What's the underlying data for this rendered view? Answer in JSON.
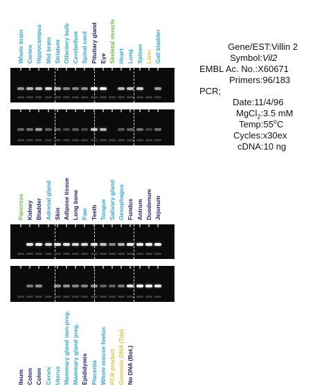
{
  "panel_top": {
    "labels": [
      {
        "text": "Whole brain",
        "color": "#2aa8e0"
      },
      {
        "text": "Cortex",
        "color": "#2aa8e0"
      },
      {
        "text": "Hippocampus",
        "color": "#2aa8e0"
      },
      {
        "text": "Mid brain",
        "color": "#2aa8e0"
      },
      {
        "text": "Striatum",
        "color": "#2aa8e0"
      },
      {
        "text": "Olfactory bulb",
        "color": "#2aa8e0"
      },
      {
        "text": "Cerebellum",
        "color": "#2aa8e0"
      },
      {
        "text": "Spinal cord",
        "color": "#2aa8e0"
      },
      {
        "text": "Pituitary gland",
        "color": "#1c1c7c"
      },
      {
        "text": "Eye",
        "color": "#1c1c7c"
      },
      {
        "text": "Skeletal muscle",
        "color": "#6cc040"
      },
      {
        "text": "Heart",
        "color": "#2aa8e0"
      },
      {
        "text": "Lung",
        "color": "#2aa8e0"
      },
      {
        "text": "Spleen",
        "color": "#2aa8e0"
      },
      {
        "text": "Liver",
        "color": "#f0c030"
      },
      {
        "text": "Gall bladder",
        "color": "#2aa8e0"
      }
    ],
    "gel1_bands": [
      0.55,
      0.7,
      0.75,
      0.85,
      0.7,
      0.5,
      0.5,
      0.55,
      1.0,
      0.95,
      0,
      0.7,
      0.75,
      0.8,
      0,
      0.6
    ],
    "gel2_bands": [
      0.35,
      0.4,
      0.6,
      0.35,
      0.3,
      0.25,
      0.3,
      0.25,
      0.75,
      0.7,
      0,
      0.3,
      0.35,
      0.4,
      0.2,
      0.4
    ]
  },
  "panel_bottom": {
    "labels": [
      {
        "text": "Pancreas",
        "color": "#6cc040"
      },
      {
        "text": "Kidney",
        "color": "#1c1c7c"
      },
      {
        "text": "Bladder",
        "color": "#1c1c7c"
      },
      {
        "text": "Adrenal gland",
        "color": "#2aa8e0"
      },
      {
        "text": "Skin",
        "color": "#1c1c7c"
      },
      {
        "text": "Adipose tissue",
        "color": "#1c1c7c"
      },
      {
        "text": "Long bone",
        "color": "#1c1c7c"
      },
      {
        "text": "Paw",
        "color": "#2aa8e0"
      },
      {
        "text": "Teeth",
        "color": "#1c1c7c"
      },
      {
        "text": "Tongue",
        "color": "#2aa8e0"
      },
      {
        "text": "Salivary gland",
        "color": "#2aa8e0"
      },
      {
        "text": "Oesophagus",
        "color": "#2aa8e0"
      },
      {
        "text": "Fundus",
        "color": "#1c1c7c"
      },
      {
        "text": "Antrum",
        "color": "#1c1c7c"
      },
      {
        "text": "Duodenum",
        "color": "#1c1c7c"
      },
      {
        "text": "Jejunum",
        "color": "#1c1c7c"
      }
    ],
    "gel1_bands": [
      0,
      0.9,
      0.95,
      0.85,
      0.9,
      0.9,
      0.85,
      0.85,
      0.9,
      0.75,
      0.5,
      0.7,
      0.95,
      0.95,
      1.0,
      0.95
    ],
    "gel2_bands": [
      0,
      0.45,
      0.55,
      0,
      0.55,
      0.55,
      0.5,
      0.5,
      0.55,
      0.35,
      0.35,
      0.45,
      0.9,
      1.0,
      1.0,
      0.9
    ]
  },
  "panel_third": {
    "labels": [
      {
        "text": "Ileum",
        "color": "#1c1c7c"
      },
      {
        "text": "Colon",
        "color": "#1c1c7c"
      },
      {
        "text": "Colon",
        "color": "#1c1c7c"
      },
      {
        "text": "Cervix",
        "color": "#2aa8e0"
      },
      {
        "text": "Uterus",
        "color": "#2aa8e0"
      },
      {
        "text": "Mammary gland non-preg.",
        "color": "#2aa8e0"
      },
      {
        "text": "Mammary gland preg.",
        "color": "#2aa8e0"
      },
      {
        "text": "Epididymis",
        "color": "#1c1c7c"
      },
      {
        "text": "Placenta",
        "color": "#2aa8e0"
      },
      {
        "text": "Whole mouse foetus",
        "color": "#2aa8e0"
      },
      {
        "text": "PCR product",
        "color": "#f0c030"
      },
      {
        "text": "Genomic DNA (Top)",
        "color": "#f0c030"
      },
      {
        "text": "No DNA (Bot.)",
        "color": "#1c1c7c"
      }
    ]
  },
  "info": {
    "gene_label": "Gene/EST:",
    "gene_value": "Villin 2",
    "symbol_label": "Symbol:",
    "symbol_value": "Vil2",
    "embl_label": "EMBL Ac. No.:",
    "embl_value": "X60671",
    "primers_label": "Primers:",
    "primers_value": "96/183",
    "pcr_label": "PCR;",
    "date_label": "Date:",
    "date_value": "11/4/96",
    "mgcl_label": "MgCl",
    "mgcl_sub": "2",
    "mgcl_sep": ":",
    "mgcl_value": "3.5 mM",
    "temp_label": "Temp:",
    "temp_value": "55",
    "temp_sup": "o",
    "temp_unit": "C",
    "cycles_label": "Cycles:",
    "cycles_value": "x30ex",
    "cdna_label": "cDNA:",
    "cdna_value": "10 ng"
  }
}
